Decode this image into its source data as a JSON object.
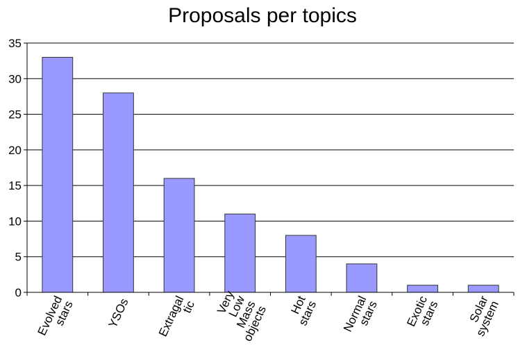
{
  "chart_data": {
    "type": "bar",
    "title": "Proposals per topics",
    "categories": [
      [
        "Evolved",
        "stars"
      ],
      [
        "YSOs"
      ],
      [
        "Extragal",
        "tic"
      ],
      [
        "Very",
        "Low",
        "Mass",
        "objects"
      ],
      [
        "Hot",
        "stars"
      ],
      [
        "Normal",
        "stars"
      ],
      [
        "Exotic",
        "stars"
      ],
      [
        "Solar",
        "system"
      ]
    ],
    "values": [
      33,
      28,
      16,
      11,
      8,
      4,
      1,
      1
    ],
    "ylim": [
      0,
      35
    ],
    "yticks": [
      "0",
      "5",
      "10",
      "15",
      "20",
      "25",
      "30",
      "35"
    ],
    "grid": true,
    "legend": "none",
    "colors": {
      "bar_fill": "#9999ff",
      "bar_stroke": "#333333",
      "grid": "#000000",
      "axis": "#000000"
    }
  }
}
